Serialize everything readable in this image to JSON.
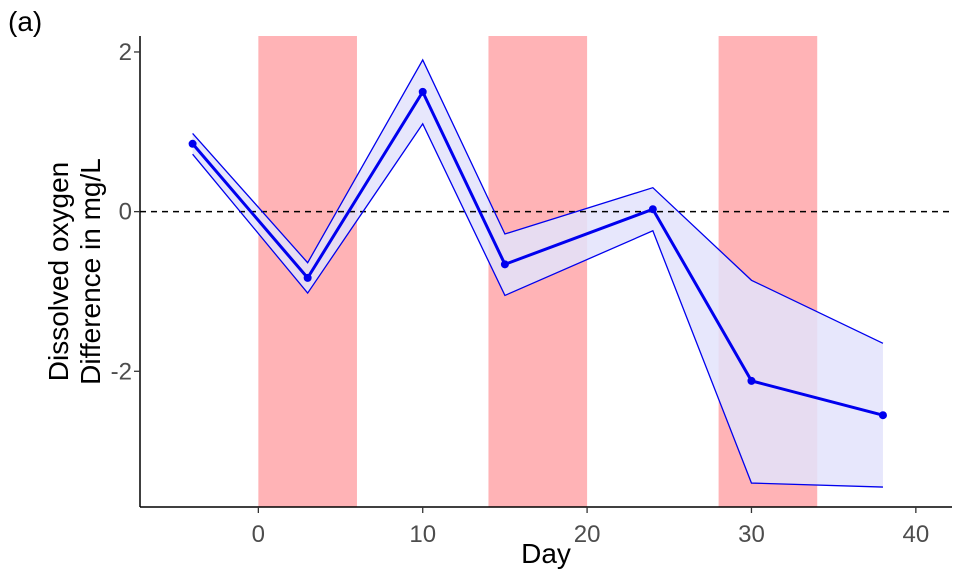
{
  "panel_label": "(a)",
  "colors": {
    "line": "#0000ee",
    "ribbon": "#e3e3fb",
    "shade": "#ffb3b6",
    "axis": "#000000"
  },
  "chart_data": {
    "type": "line",
    "xlabel": "Day",
    "ylabel_lines": [
      "Dissolved oxygen",
      "Difference in mg/L"
    ],
    "xlim": [
      -7.2,
      42.2
    ],
    "ylim": [
      -3.7,
      2.2
    ],
    "x_ticks": [
      0,
      10,
      20,
      30,
      40
    ],
    "y_ticks": [
      -2,
      0,
      2
    ],
    "reference_line_y": 0,
    "shaded_intervals": [
      [
        0,
        6
      ],
      [
        14,
        20
      ],
      [
        28,
        34
      ]
    ],
    "series": [
      {
        "x": [
          -4,
          3,
          10,
          15,
          24,
          30,
          38
        ],
        "y": [
          0.85,
          -0.83,
          1.5,
          -0.66,
          0.03,
          -2.12,
          -2.55
        ],
        "lower": [
          0.72,
          -1.02,
          1.1,
          -1.05,
          -0.24,
          -3.4,
          -3.45
        ],
        "upper": [
          0.98,
          -0.64,
          1.9,
          -0.28,
          0.3,
          -0.86,
          -1.65
        ]
      }
    ],
    "grid": false,
    "legend": "none"
  }
}
